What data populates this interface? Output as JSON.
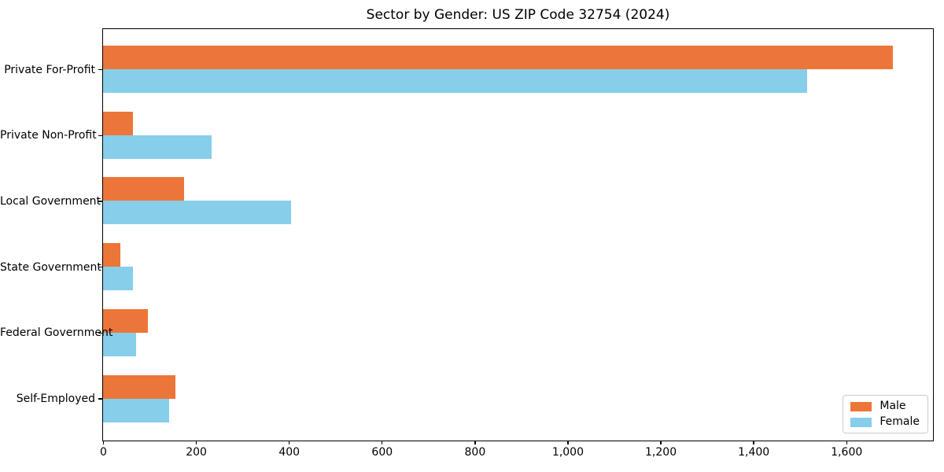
{
  "title": "Sector by Gender: US ZIP Code 32754 (2024)",
  "colors": {
    "male": "#EC7639",
    "female": "#87CEEB",
    "axis": "#000000",
    "legend_border": "#CCCCCC",
    "background": "#FFFFFF"
  },
  "chart_data": {
    "type": "bar",
    "orientation": "horizontal",
    "title": "Sector by Gender: US ZIP Code 32754 (2024)",
    "categories": [
      "Private For-Profit",
      "Private Non-Profit",
      "Local Government",
      "State Government",
      "Federal Government",
      "Self-Employed"
    ],
    "series": [
      {
        "name": "Male",
        "color": "#EC7639",
        "values": [
          1700,
          64,
          175,
          38,
          96,
          155
        ]
      },
      {
        "name": "Female",
        "color": "#87CEEB",
        "values": [
          1515,
          234,
          404,
          65,
          71,
          143
        ]
      }
    ],
    "xlabel": "",
    "ylabel": "",
    "xlim": [
      0,
      1785
    ],
    "xticks": [
      {
        "value": 0,
        "label": "0"
      },
      {
        "value": 200,
        "label": "200"
      },
      {
        "value": 400,
        "label": "400"
      },
      {
        "value": 600,
        "label": "600"
      },
      {
        "value": 800,
        "label": "800"
      },
      {
        "value": 1000,
        "label": "1,000"
      },
      {
        "value": 1200,
        "label": "1,200"
      },
      {
        "value": 1400,
        "label": "1,400"
      },
      {
        "value": 1600,
        "label": "1,600"
      }
    ],
    "grid": false,
    "legend_position": "lower right"
  }
}
